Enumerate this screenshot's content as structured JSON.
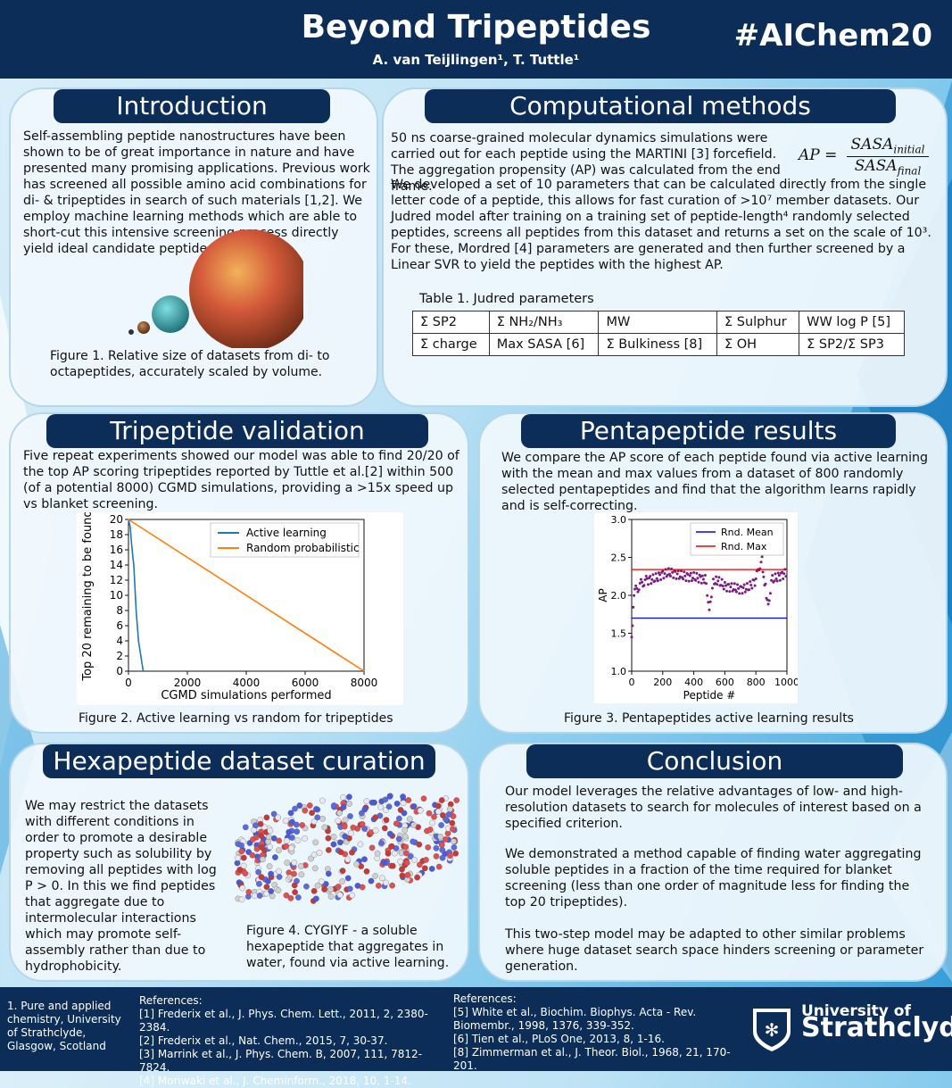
{
  "header": {
    "title": "Beyond Tripeptides",
    "authors": "A. van Teijlingen¹, T. Tuttle¹",
    "hashtag": "#AIChem20"
  },
  "intro": {
    "title": "Introduction",
    "text": "Self-assembling peptide nanostructures have been shown to be of great importance in nature and have presented many promising applications. Previous work has screened all possible amino acid combinations for di- & tripeptides in search of such materials [1,2]. We employ machine learning methods which are able to short-cut this intensive screening process directly yield ideal candidate peptides.",
    "caption": "Figure 1. Relative size of datasets from di- to octapeptides, accurately scaled by volume."
  },
  "methods": {
    "title": "Computational methods",
    "text1": "50 ns coarse-grained molecular dynamics simulations were carried out for each peptide using the MARTINI [3] forcefield. The aggregation propensity (AP) was calculated from the end frame.",
    "text2": "We developed a set of 10 parameters that can be calculated directly from the single letter code of a peptide, this allows for fast curation of >10⁷ member datasets. Our Judred model after training on a training set of peptide-length⁴ randomly selected peptides, screens all peptides from this dataset and returns a set on the scale of 10³. For these, Mordred [4] parameters are generated and then further screened by a Linear SVR to yield the peptides with the highest AP.",
    "formula": {
      "lhs": "AP =",
      "num": "SASA",
      "num_sub": "initial",
      "den": "SASA",
      "den_sub": "final"
    },
    "table_caption": "Table 1. Judred parameters",
    "table": [
      [
        "Σ SP2",
        "Σ NH₂/NH₃",
        "MW",
        "Σ Sulphur",
        "WW log P [5]"
      ],
      [
        "Σ charge",
        "Max SASA [6]",
        "Σ Bulkiness [8]",
        "Σ OH",
        "Σ SP2/Σ SP3"
      ]
    ]
  },
  "tri": {
    "title": "Tripeptide validation",
    "text": "Five repeat experiments showed our model was able to find 20/20 of the top AP scoring tripeptides reported by Tuttle et al.[2] within 500 (of a potential 8000) CGMD simulations, providing a >15x speed up vs blanket screening.",
    "caption": "Figure 2. Active learning vs random for tripeptides"
  },
  "penta": {
    "title": "Pentapeptide results",
    "text": "We compare the AP score of each peptide found via active learning with the mean and max values from a dataset of 800 randomly selected pentapeptides and find that the algorithm learns rapidly and is self-correcting.",
    "caption": "Figure 3. Pentapeptides active learning results"
  },
  "hexa": {
    "title": "Hexapeptide dataset curation",
    "text": "We may restrict the datasets with different conditions in order to promote a desirable property such as solubility by removing all peptides with log P > 0. In this we find peptides that aggregate due to intermolecular interactions which may promote self-assembly rather than due to hydrophobicity.",
    "caption": "Figure 4. CYGIYF - a soluble hexapeptide that aggregates in water, found via active learning."
  },
  "conclusion": {
    "title": "Conclusion",
    "p1": "Our model leverages the relative advantages of low- and high-resolution datasets to search for molecules of interest based on a specified criterion.",
    "p2": "We demonstrated a method capable of finding water aggregating soluble peptides in a fraction of the time required for blanket screening (less than one order of magnitude less for finding the top 20 tripeptides).",
    "p3": "This two-step model may be adapted to other similar problems where huge dataset search space hinders screening or parameter generation."
  },
  "footer": {
    "affiliation": "1. Pure and applied chemistry, University of Strathclyde, Glasgow, Scotland",
    "refs_label": "References:",
    "refs_left": [
      "[1] Frederix et al., J. Phys. Chem. Lett., 2011, 2, 2380-2384.",
      "[2] Frederix et al., Nat. Chem., 2015, 7, 30-37.",
      "[3] Marrink et al., J. Phys. Chem. B, 2007, 111, 7812-7824.",
      "[4] Moriwaki et al., J. Cheminform., 2018, 10, 1-14."
    ],
    "refs_right": [
      "[5] White et al., Biochim. Biophys. Acta - Rev. Biomembr., 1998, 1376, 339-352.",
      "[6] Tien et al., PLoS One, 2013, 8, 1-16.",
      "[8] Zimmerman et al., J. Theor. Biol., 1968, 21, 170-201."
    ],
    "logo_line1": "University of",
    "logo_line2": "Strathclyde"
  },
  "chart_data": [
    {
      "type": "line",
      "xlabel": "CGMD simulations performed",
      "ylabel": "Top 20 remaining to be found",
      "xlim": [
        0,
        8000
      ],
      "ylim": [
        0,
        20
      ],
      "xticks": [
        0,
        2000,
        4000,
        6000,
        8000
      ],
      "yticks": [
        0,
        2,
        4,
        6,
        8,
        10,
        12,
        14,
        16,
        18,
        20
      ],
      "legend": "top-right",
      "series": [
        {
          "name": "Active learning",
          "color": "#1f77b4",
          "x": [
            0,
            60,
            100,
            150,
            180,
            220,
            260,
            300,
            340,
            380,
            420,
            460,
            500
          ],
          "y": [
            20,
            19,
            17,
            15,
            14,
            11,
            8,
            6,
            4,
            3,
            2,
            1,
            0
          ]
        },
        {
          "name": "Random probabilistic",
          "color": "#ff7f0e",
          "x": [
            0,
            8000
          ],
          "y": [
            20,
            0
          ]
        }
      ]
    },
    {
      "type": "scatter",
      "xlabel": "Peptide #",
      "ylabel": "AP",
      "xlim": [
        0,
        1000
      ],
      "ylim": [
        1.0,
        3.0
      ],
      "xticks": [
        0,
        200,
        400,
        600,
        800,
        1000
      ],
      "yticks": [
        1.0,
        1.5,
        2.0,
        2.5,
        3.0
      ],
      "legend": "top-right",
      "reference_lines": [
        {
          "name": "Rnd. Mean",
          "color": "#0000ff",
          "y": 1.7
        },
        {
          "name": "Rnd. Max",
          "color": "#ee0000",
          "y": 2.34
        }
      ],
      "series": [
        {
          "color": "#7a1a82",
          "x": [
            0,
            5,
            10,
            20,
            40,
            60,
            80,
            100,
            150,
            200,
            250,
            300,
            350,
            400,
            450,
            480,
            500,
            520,
            550,
            600,
            650,
            700,
            750,
            800,
            820,
            840,
            850,
            880,
            900,
            950,
            1000
          ],
          "y": [
            1.45,
            1.55,
            1.9,
            2.05,
            2.1,
            2.15,
            2.18,
            2.2,
            2.22,
            2.28,
            2.3,
            2.27,
            2.25,
            2.24,
            2.22,
            2.2,
            1.75,
            2.15,
            2.2,
            2.12,
            2.1,
            2.08,
            2.1,
            2.2,
            2.38,
            2.45,
            2.25,
            1.85,
            2.2,
            2.25,
            2.3
          ]
        }
      ]
    }
  ]
}
